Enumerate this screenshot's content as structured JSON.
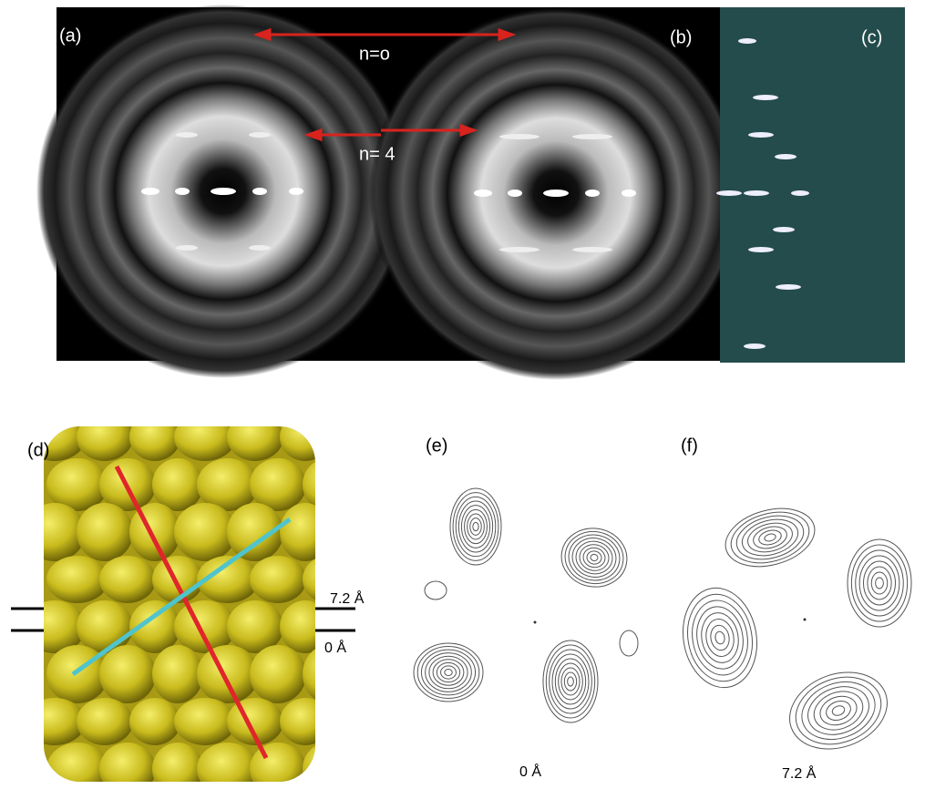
{
  "figure": {
    "panel_labels": [
      "(a)",
      "(b)",
      "(c)",
      "(d)",
      "(e)",
      "(f)"
    ],
    "annotations": [
      "n=o",
      "n= 4"
    ],
    "height_labels": [
      "7.2 Å",
      "0 Å"
    ],
    "contour_captions": [
      "0 Å",
      "7.2 Å"
    ]
  }
}
